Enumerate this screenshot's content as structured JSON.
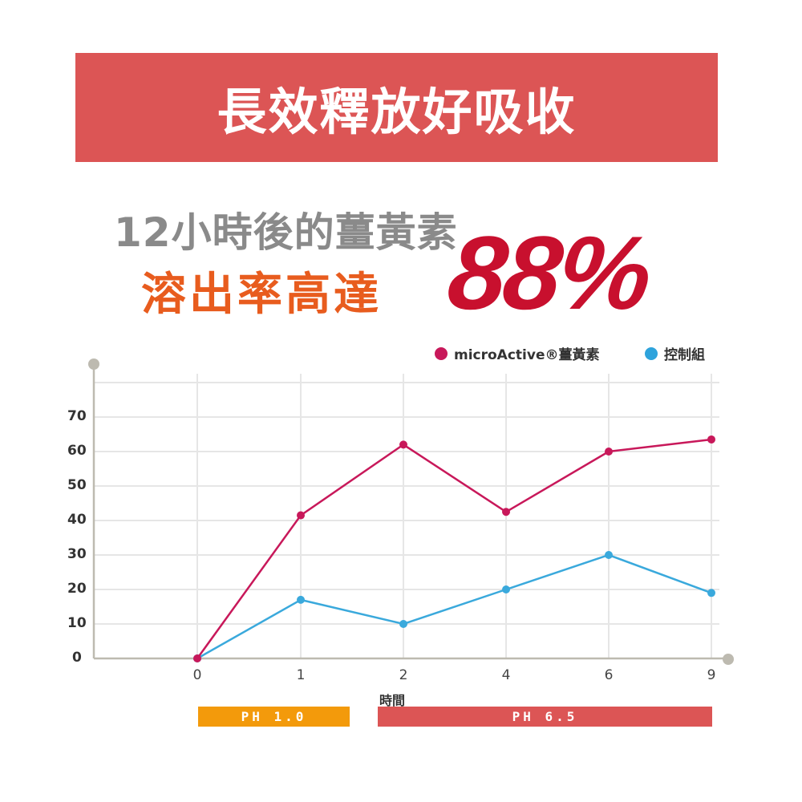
{
  "banner": {
    "title": "長效釋放好吸收"
  },
  "headline": {
    "line1": "12小時後的薑黃素",
    "line2": "溶出率高達",
    "percent": "88%"
  },
  "colors": {
    "banner": "#dc5555",
    "headline_gray": "#8a8a8a",
    "headline_orange": "#e85c1e",
    "percent_red": "#c8102e",
    "series_micro": "#c8185a",
    "series_control": "#3aa9dc",
    "ph1": "#f39a0b",
    "ph2": "#dc5555",
    "axis": "#bdbab0",
    "grid": "#e6e6e6"
  },
  "legend": [
    {
      "label": "microActive®薑黃素",
      "color": "#c8185a"
    },
    {
      "label": "控制組",
      "color": "#2ea3dc"
    }
  ],
  "axis": {
    "y_ticks": [
      "0",
      "10",
      "20",
      "30",
      "40",
      "50",
      "60",
      "70"
    ],
    "x_ticks": [
      "0",
      "1",
      "2",
      "4",
      "6",
      "9"
    ],
    "x_label": "時間"
  },
  "ph_bands": [
    {
      "label": "PH 1.0",
      "color": "#f39a0b"
    },
    {
      "label": "PH 6.5",
      "color": "#dc5555"
    }
  ],
  "chart_data": {
    "type": "line",
    "title": "長效釋放好吸收",
    "subtitle": "12小時後的薑黃素溶出率高達88%",
    "xlabel": "時間",
    "ylabel": "",
    "categories": [
      "0",
      "1",
      "2",
      "4",
      "6",
      "9"
    ],
    "series": [
      {
        "name": "microActive®薑黃素",
        "values": [
          0,
          41.5,
          62,
          42.5,
          60,
          63.5
        ]
      },
      {
        "name": "控制組",
        "values": [
          0,
          17,
          10,
          20,
          30,
          19
        ]
      }
    ],
    "ylim": [
      0,
      80
    ],
    "y_ticks": [
      0,
      10,
      20,
      30,
      40,
      50,
      60,
      70
    ],
    "grid": true,
    "legend_position": "top-right",
    "annotations": [
      {
        "label": "PH 1.0",
        "span": [
          "0",
          "1"
        ]
      },
      {
        "label": "PH 6.5",
        "span": [
          "2",
          "9"
        ]
      }
    ]
  }
}
